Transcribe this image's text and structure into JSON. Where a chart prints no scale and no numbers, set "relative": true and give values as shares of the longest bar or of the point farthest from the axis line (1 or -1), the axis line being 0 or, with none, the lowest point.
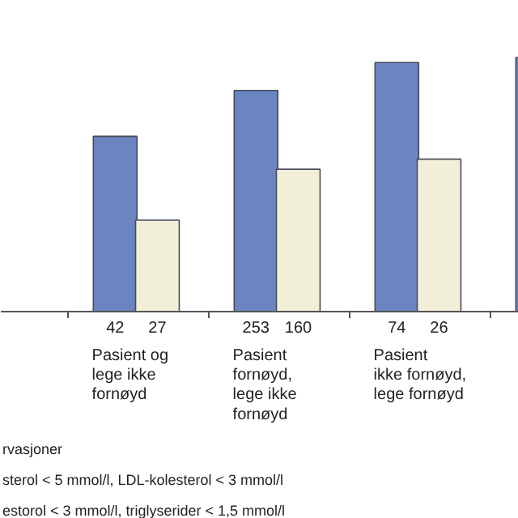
{
  "chart_data": {
    "type": "bar",
    "relative": true,
    "categories": [
      "Pasient og\nlege ikke\nfornøyd",
      "Pasient\nfornøyd,\nlege ikke\nfornøyd",
      "Pasient\nikke fornøyd,\nlege fornøyd",
      null
    ],
    "series": [
      {
        "color": "#6a85c0",
        "values": [
          0.69,
          0.87,
          0.98,
          1.0
        ]
      },
      {
        "color": "#f1efd8",
        "values": [
          0.36,
          0.56,
          0.6,
          null
        ]
      }
    ],
    "annotations": [
      "42",
      "27",
      "253",
      "160",
      "74",
      "26",
      "rvasjoner",
      "sterol  < 5 mmol/l,   LDL-kolesterol < 3 mmol/l",
      "estorol < 3 mmol/l,   triglyserider  < 1,5 mmol/l"
    ]
  }
}
